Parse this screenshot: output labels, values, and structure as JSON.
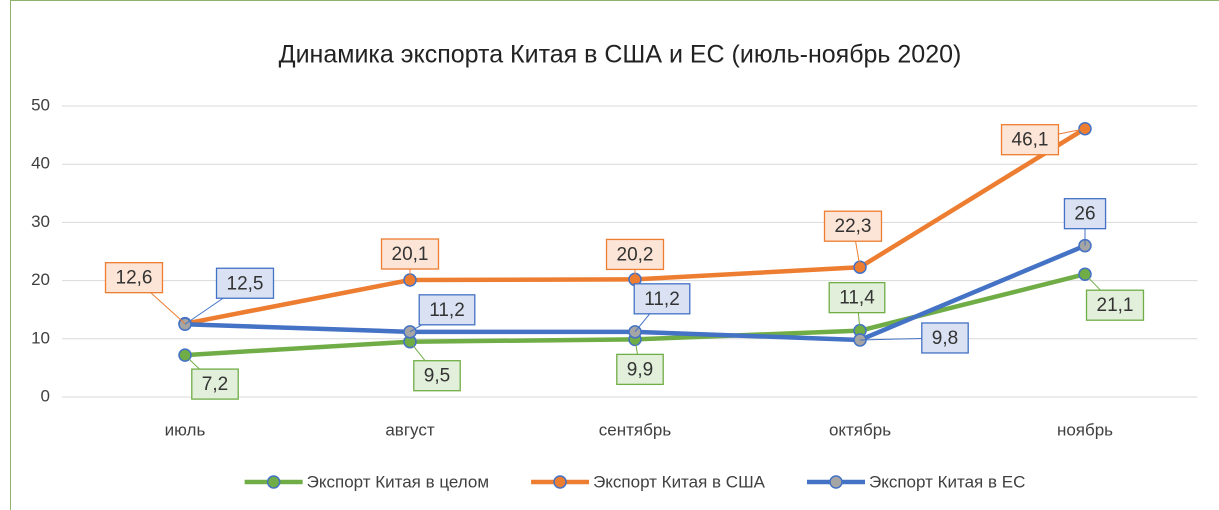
{
  "chart_data": {
    "type": "line",
    "title": "Динамика экспорта Китая в США и ЕС (июль-ноябрь 2020)",
    "categories": [
      "июль",
      "август",
      "сентябрь",
      "октябрь",
      "ноябрь"
    ],
    "series": [
      {
        "name": "Экспорт Китая в целом",
        "color": "#70ad47",
        "values": [
          7.2,
          9.5,
          9.9,
          11.4,
          21.1
        ],
        "value_labels": [
          "7,2",
          "9,5",
          "9,9",
          "11,4",
          "21,1"
        ]
      },
      {
        "name": "Экспорт Китая в США",
        "color": "#ed7d31",
        "values": [
          12.6,
          20.1,
          20.2,
          22.3,
          46.1
        ],
        "value_labels": [
          "12,6",
          "20,1",
          "20,2",
          "22,3",
          "46,1"
        ]
      },
      {
        "name": "Экспорт Китая в ЕС",
        "color": "#4472c4",
        "values": [
          12.5,
          11.2,
          11.2,
          9.8,
          26
        ],
        "value_labels": [
          "12,5",
          "11,2",
          "11,2",
          "9,8",
          "26"
        ]
      }
    ],
    "ylim": [
      0,
      50
    ],
    "yticks": [
      0,
      10,
      20,
      30,
      40,
      50
    ],
    "grid": true,
    "legend": "bottom"
  }
}
